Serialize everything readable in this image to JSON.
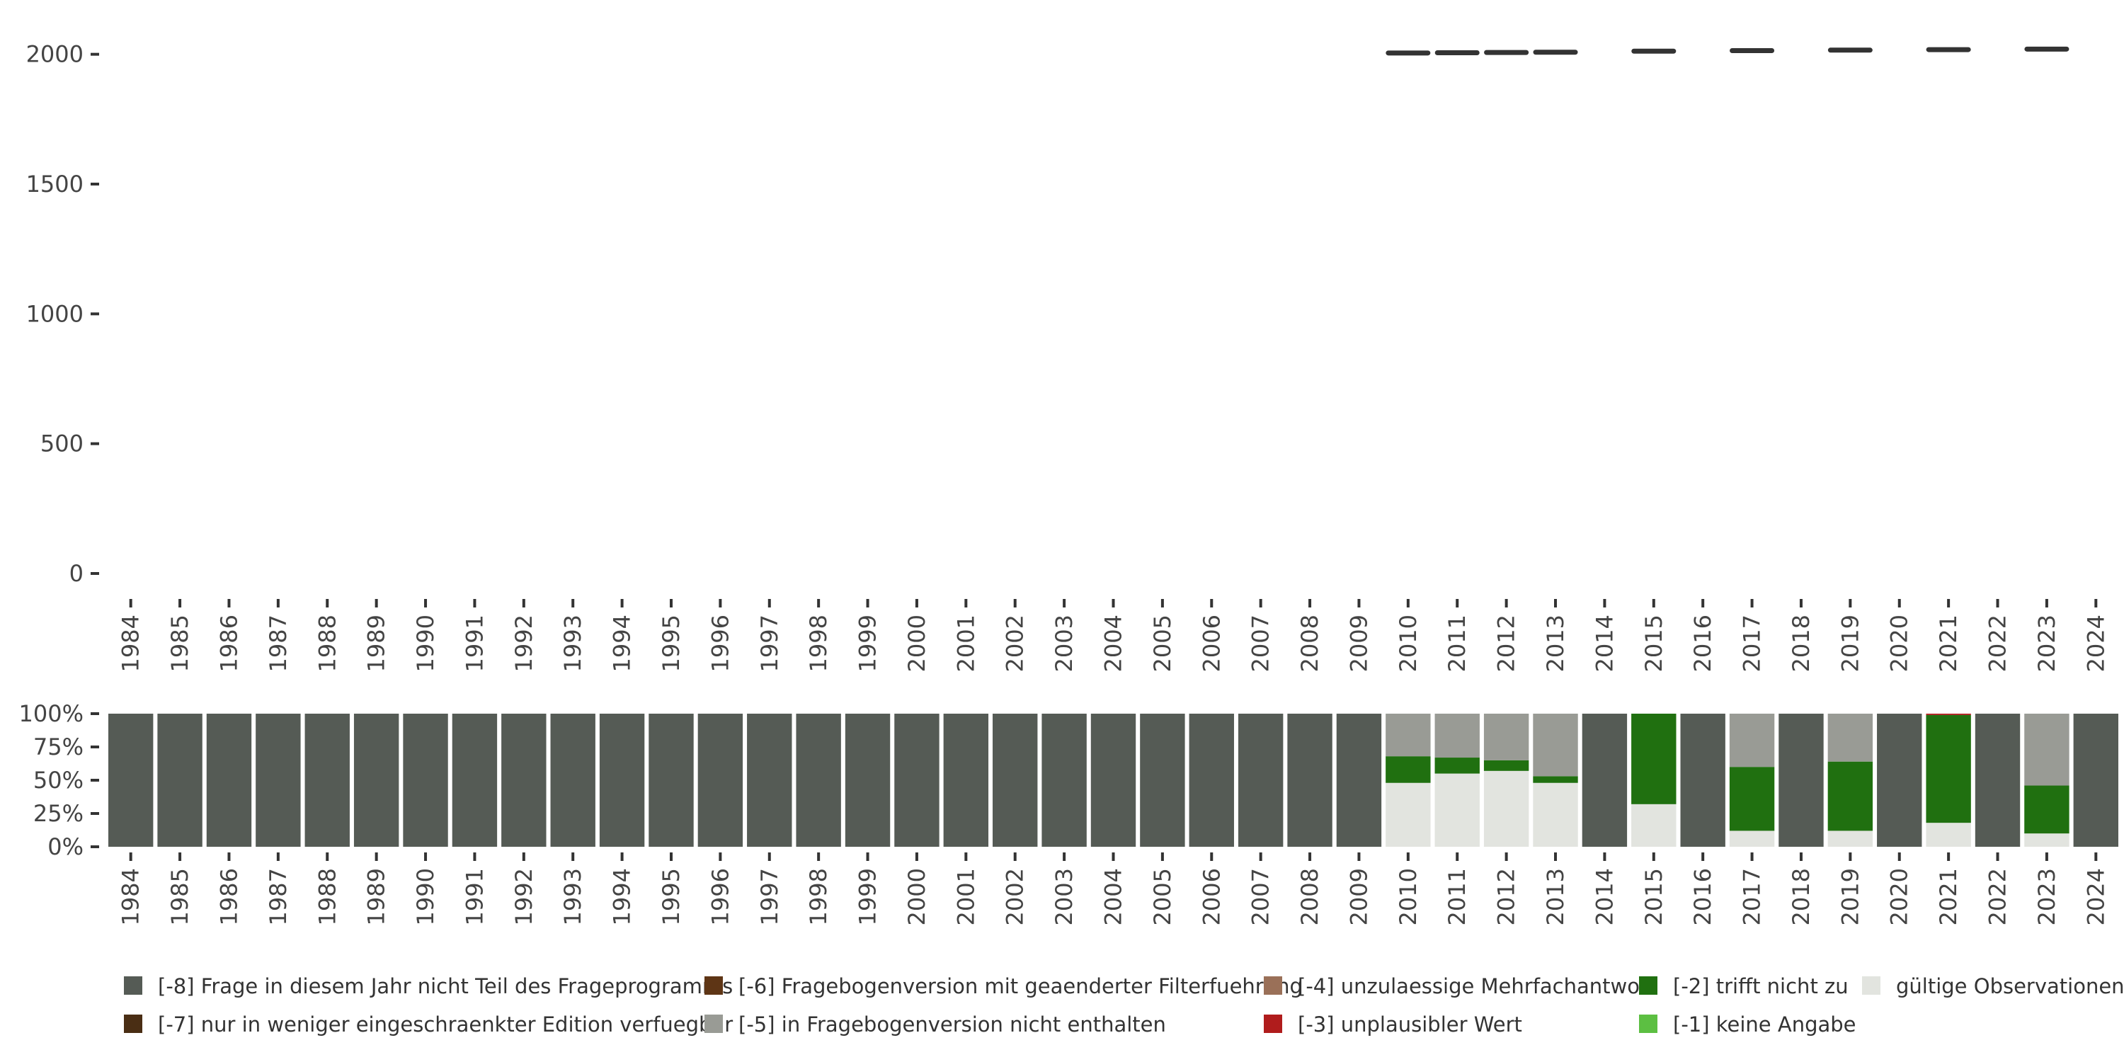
{
  "chart_data": [
    {
      "type": "line",
      "y_ticks": [
        "0",
        "500",
        "1000",
        "1500",
        "2000"
      ],
      "ylim": [
        0,
        2100
      ],
      "x": [
        "1984",
        "1985",
        "1986",
        "1987",
        "1988",
        "1989",
        "1990",
        "1991",
        "1992",
        "1993",
        "1994",
        "1995",
        "1996",
        "1997",
        "1998",
        "1999",
        "2000",
        "2001",
        "2002",
        "2003",
        "2004",
        "2005",
        "2006",
        "2007",
        "2008",
        "2009",
        "2010",
        "2011",
        "2012",
        "2013",
        "2014",
        "2015",
        "2016",
        "2017",
        "2018",
        "2019",
        "2020",
        "2021",
        "2022",
        "2023",
        "2024"
      ],
      "values": [
        null,
        null,
        null,
        null,
        null,
        null,
        null,
        null,
        null,
        null,
        null,
        null,
        null,
        null,
        null,
        null,
        null,
        null,
        null,
        null,
        null,
        null,
        null,
        null,
        null,
        null,
        2005,
        2006,
        2007,
        2008,
        null,
        2012,
        null,
        2014,
        null,
        2016,
        null,
        2018,
        null,
        2020,
        null
      ],
      "colors": {
        "line": "#333333",
        "axis": "#333333",
        "text": "#444444"
      }
    },
    {
      "type": "bar",
      "stacked": true,
      "percent": true,
      "y_ticks": [
        "0%",
        "25%",
        "50%",
        "75%",
        "100%"
      ],
      "ylim": [
        0,
        1
      ],
      "categories": [
        "1984",
        "1985",
        "1986",
        "1987",
        "1988",
        "1989",
        "1990",
        "1991",
        "1992",
        "1993",
        "1994",
        "1995",
        "1996",
        "1997",
        "1998",
        "1999",
        "2000",
        "2001",
        "2002",
        "2003",
        "2004",
        "2005",
        "2006",
        "2007",
        "2008",
        "2009",
        "2010",
        "2011",
        "2012",
        "2013",
        "2014",
        "2015",
        "2016",
        "2017",
        "2018",
        "2019",
        "2020",
        "2021",
        "2022",
        "2023",
        "2024"
      ],
      "series": [
        {
          "name": "gültige Observationen",
          "color": "#e2e4df",
          "values": [
            0,
            0,
            0,
            0,
            0,
            0,
            0,
            0,
            0,
            0,
            0,
            0,
            0,
            0,
            0,
            0,
            0,
            0,
            0,
            0,
            0,
            0,
            0,
            0,
            0,
            0,
            0.48,
            0.55,
            0.57,
            0.48,
            0,
            0.32,
            0,
            0.12,
            0,
            0.12,
            0,
            0.18,
            0,
            0.1,
            0
          ]
        },
        {
          "name": "[-2] trifft nicht zu",
          "color": "#207010",
          "values": [
            0,
            0,
            0,
            0,
            0,
            0,
            0,
            0,
            0,
            0,
            0,
            0,
            0,
            0,
            0,
            0,
            0,
            0,
            0,
            0,
            0,
            0,
            0,
            0,
            0,
            0,
            0.2,
            0.12,
            0.08,
            0.05,
            0,
            0.68,
            0,
            0.48,
            0,
            0.52,
            0,
            0.81,
            0,
            0.36,
            0
          ]
        },
        {
          "name": "[-3] unplausibler Wert",
          "color": "#b01c1c",
          "values": [
            0,
            0,
            0,
            0,
            0,
            0,
            0,
            0,
            0,
            0,
            0,
            0,
            0,
            0,
            0,
            0,
            0,
            0,
            0,
            0,
            0,
            0,
            0,
            0,
            0,
            0,
            0,
            0,
            0,
            0,
            0,
            0,
            0,
            0,
            0,
            0,
            0,
            0.01,
            0,
            0,
            0
          ]
        },
        {
          "name": "[-5] in Fragebogenversion nicht enthalten",
          "color": "#999b95",
          "values": [
            0,
            0,
            0,
            0,
            0,
            0,
            0,
            0,
            0,
            0,
            0,
            0,
            0,
            0,
            0,
            0,
            0,
            0,
            0,
            0,
            0,
            0,
            0,
            0,
            0,
            0,
            0.32,
            0.33,
            0.35,
            0.47,
            0,
            0,
            0,
            0.4,
            0,
            0.36,
            0,
            0,
            0,
            0.54,
            0
          ]
        },
        {
          "name": "[-8] Frage in diesem Jahr nicht Teil des Frageprogramms",
          "color": "#555b55",
          "values": [
            1,
            1,
            1,
            1,
            1,
            1,
            1,
            1,
            1,
            1,
            1,
            1,
            1,
            1,
            1,
            1,
            1,
            1,
            1,
            1,
            1,
            1,
            1,
            1,
            1,
            1,
            0,
            0,
            0,
            0,
            1,
            0,
            1,
            0,
            1,
            0,
            1,
            0,
            1,
            0,
            1
          ]
        }
      ]
    }
  ],
  "legend": [
    {
      "label": "[-8] Frage in diesem Jahr nicht Teil des Frageprogramms",
      "color": "#555b55"
    },
    {
      "label": "[-7] nur in weniger eingeschraenkter Edition verfuegbar",
      "color": "#4a2e14"
    },
    {
      "label": "[-6] Fragebogenversion mit geaenderter Filterfuehrung",
      "color": "#5e3515"
    },
    {
      "label": "[-5] in Fragebogenversion nicht enthalten",
      "color": "#999b95"
    },
    {
      "label": "[-4] unzulaessige Mehrfachantwort",
      "color": "#9a7058"
    },
    {
      "label": "[-3] unplausibler Wert",
      "color": "#b01c1c"
    },
    {
      "label": "[-2] trifft nicht zu",
      "color": "#207010"
    },
    {
      "label": "[-1] keine Angabe",
      "color": "#5cbf42"
    },
    {
      "label": "gültige Observationen",
      "color": "#e2e4df"
    }
  ]
}
